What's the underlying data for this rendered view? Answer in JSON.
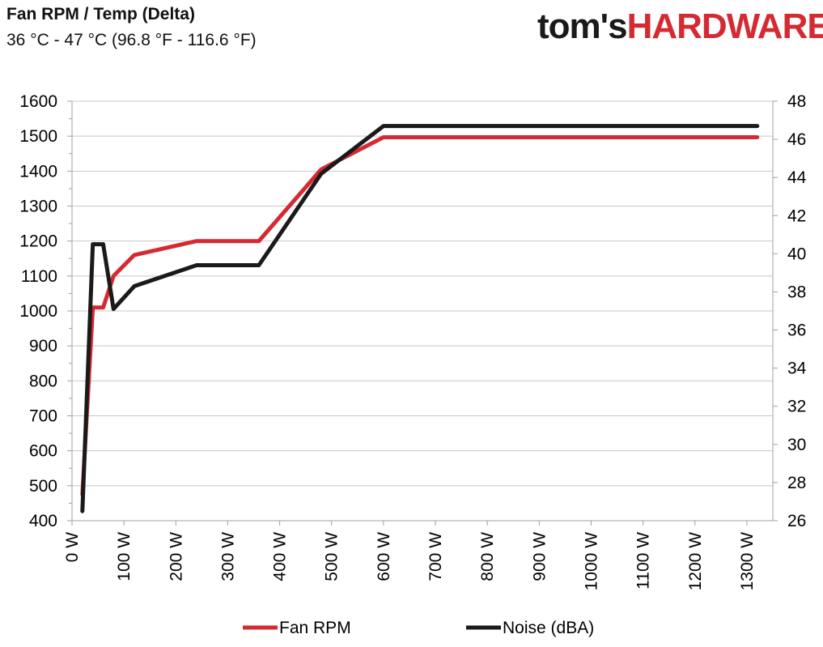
{
  "header": {
    "title": "Fan RPM / Temp (Delta)",
    "subtitle": "36 °C - 47 °C (96.8 °F - 116.6 °F)",
    "logo_part1": "tom's",
    "logo_part2": "HARDWARE"
  },
  "colors": {
    "fan_rpm": "#d52a32",
    "noise": "#1a1a1a",
    "grid": "#c8c8c8",
    "axis": "#a0a0a0",
    "logo_accent": "#d52a32"
  },
  "chart_data": {
    "type": "line",
    "title": "Fan RPM / Temp (Delta)",
    "subtitle": "36 °C - 47 °C (96.8 °F - 116.6 °F)",
    "xlabel": "",
    "ylabel_left": "",
    "ylabel_right": "",
    "xlim": [
      0,
      1350
    ],
    "ylim_left": [
      400,
      1600
    ],
    "ylim_right": [
      26,
      48
    ],
    "x_tick_values": [
      0,
      100,
      200,
      300,
      400,
      500,
      600,
      700,
      800,
      900,
      1000,
      1100,
      1200,
      1300
    ],
    "x_tick_labels": [
      "0 W",
      "100 W",
      "200 W",
      "300 W",
      "400 W",
      "500 W",
      "600 W",
      "700 W",
      "800 W",
      "900 W",
      "1000 W",
      "1100 W",
      "1200 W",
      "1300 W"
    ],
    "y_left_ticks": [
      400,
      500,
      600,
      700,
      800,
      900,
      1000,
      1100,
      1200,
      1300,
      1400,
      1500,
      1600
    ],
    "y_right_ticks": [
      26,
      28,
      30,
      32,
      34,
      36,
      38,
      40,
      42,
      44,
      46,
      48
    ],
    "grid": true,
    "legend_position": "bottom",
    "series": [
      {
        "name": "Fan RPM",
        "axis": "left",
        "x": [
          20,
          40,
          60,
          80,
          120,
          240,
          360,
          480,
          600,
          720,
          840,
          960,
          1080,
          1200,
          1320
        ],
        "y": [
          475,
          1010,
          1010,
          1100,
          1160,
          1200,
          1200,
          1405,
          1497,
          1497,
          1497,
          1497,
          1497,
          1497,
          1497
        ]
      },
      {
        "name": "Noise (dBA)",
        "axis": "right",
        "x": [
          20,
          40,
          60,
          80,
          120,
          240,
          360,
          480,
          600,
          720,
          840,
          960,
          1080,
          1200,
          1320
        ],
        "y": [
          26.5,
          40.5,
          40.5,
          37.1,
          38.3,
          39.4,
          39.4,
          44.2,
          46.7,
          46.7,
          46.7,
          46.7,
          46.7,
          46.7,
          46.7
        ]
      }
    ]
  }
}
